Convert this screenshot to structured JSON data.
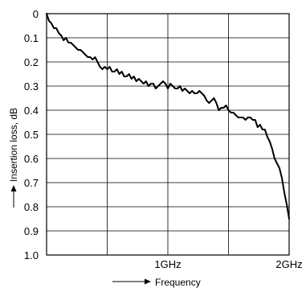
{
  "chart_data": {
    "type": "line",
    "title": "",
    "xlabel": "Frequency",
    "ylabel": "Insertion loss, dB",
    "x_unit": "GHz",
    "xlim": [
      0,
      2
    ],
    "ylim": [
      0,
      1.0
    ],
    "y_inverted": true,
    "grid": true,
    "x_ticks": [
      {
        "value": 1,
        "label": "1GHz"
      },
      {
        "value": 2,
        "label": "2GHz"
      }
    ],
    "y_ticks": [
      {
        "value": 0,
        "label": "0"
      },
      {
        "value": 0.1,
        "label": "0.1"
      },
      {
        "value": 0.2,
        "label": "0.2"
      },
      {
        "value": 0.3,
        "label": "0.3"
      },
      {
        "value": 0.4,
        "label": "0.4"
      },
      {
        "value": 0.5,
        "label": "0.5"
      },
      {
        "value": 0.6,
        "label": "0.6"
      },
      {
        "value": 0.7,
        "label": "0.7"
      },
      {
        "value": 0.8,
        "label": "0.8"
      },
      {
        "value": 0.9,
        "label": "0.9"
      },
      {
        "value": 1.0,
        "label": "1.0"
      }
    ],
    "series": [
      {
        "color": "#000000",
        "x": [
          0,
          0.02,
          0.04,
          0.06,
          0.08,
          0.1,
          0.12,
          0.14,
          0.16,
          0.18,
          0.2,
          0.22,
          0.24,
          0.26,
          0.28,
          0.3,
          0.32,
          0.34,
          0.36,
          0.38,
          0.4,
          0.42,
          0.44,
          0.46,
          0.48,
          0.5,
          0.52,
          0.54,
          0.56,
          0.58,
          0.6,
          0.62,
          0.64,
          0.66,
          0.68,
          0.7,
          0.72,
          0.74,
          0.76,
          0.78,
          0.8,
          0.82,
          0.84,
          0.86,
          0.88,
          0.9,
          0.92,
          0.94,
          0.96,
          0.98,
          1.0,
          1.02,
          1.04,
          1.06,
          1.08,
          1.1,
          1.12,
          1.14,
          1.16,
          1.18,
          1.2,
          1.22,
          1.24,
          1.26,
          1.28,
          1.3,
          1.32,
          1.34,
          1.36,
          1.38,
          1.4,
          1.42,
          1.44,
          1.46,
          1.48,
          1.5,
          1.52,
          1.54,
          1.56,
          1.58,
          1.6,
          1.62,
          1.64,
          1.66,
          1.68,
          1.7,
          1.72,
          1.74,
          1.76,
          1.78,
          1.8,
          1.82,
          1.84,
          1.86,
          1.88,
          1.9,
          1.92,
          1.94,
          1.96,
          1.98,
          2.0
        ],
        "values": [
          0.0,
          0.03,
          0.04,
          0.06,
          0.06,
          0.08,
          0.09,
          0.11,
          0.1,
          0.12,
          0.12,
          0.13,
          0.14,
          0.15,
          0.15,
          0.16,
          0.17,
          0.18,
          0.18,
          0.19,
          0.18,
          0.2,
          0.22,
          0.23,
          0.22,
          0.23,
          0.22,
          0.24,
          0.24,
          0.23,
          0.25,
          0.24,
          0.26,
          0.26,
          0.25,
          0.27,
          0.26,
          0.28,
          0.27,
          0.28,
          0.29,
          0.28,
          0.3,
          0.29,
          0.29,
          0.31,
          0.3,
          0.29,
          0.28,
          0.29,
          0.31,
          0.29,
          0.3,
          0.31,
          0.31,
          0.3,
          0.32,
          0.31,
          0.32,
          0.33,
          0.32,
          0.33,
          0.33,
          0.32,
          0.33,
          0.34,
          0.36,
          0.37,
          0.36,
          0.35,
          0.37,
          0.4,
          0.39,
          0.39,
          0.38,
          0.4,
          0.41,
          0.41,
          0.42,
          0.43,
          0.43,
          0.43,
          0.44,
          0.43,
          0.43,
          0.44,
          0.44,
          0.47,
          0.46,
          0.48,
          0.48,
          0.51,
          0.53,
          0.56,
          0.6,
          0.62,
          0.64,
          0.68,
          0.74,
          0.79,
          0.85
        ]
      }
    ]
  }
}
